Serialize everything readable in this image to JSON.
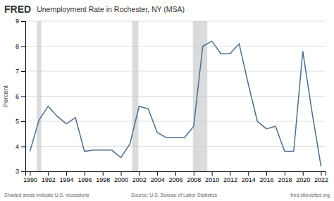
{
  "chart_data": {
    "type": "line",
    "title": "Unemployment Rate in Rochester, NY (MSA)",
    "y_label": "Percent",
    "annotations": [
      "FRED",
      "Shaded areas indicate U.S. recessions",
      "Source: U.S. Bureau of Labor Statistics",
      "fred.stlouisfed.org"
    ],
    "recession_periods": [
      [
        1990.75,
        1991.25
      ],
      [
        2001.25,
        2001.92
      ],
      [
        2007.92,
        2009.5
      ]
    ],
    "x": [
      1990,
      1991,
      1992,
      1993,
      1994,
      1995,
      1996,
      1997,
      1998,
      1999,
      2000,
      2001,
      2002,
      2003,
      2004,
      2005,
      2006,
      2007,
      2008,
      2009,
      2010,
      2011,
      2012,
      2013,
      2014,
      2015,
      2016,
      2017,
      2018,
      2019,
      2020,
      2021,
      2022
    ],
    "values": [
      3.8,
      5.05,
      5.6,
      5.2,
      4.9,
      5.15,
      3.8,
      3.85,
      3.85,
      3.85,
      3.55,
      4.1,
      5.6,
      5.5,
      4.55,
      4.35,
      4.35,
      4.35,
      4.8,
      8.0,
      8.2,
      7.7,
      7.7,
      8.1,
      6.5,
      5.0,
      4.7,
      4.8,
      3.8,
      3.8,
      7.8,
      5.4,
      3.2
    ],
    "color": "#4c6e8c",
    "xlim": [
      1989.5,
      2022.5
    ],
    "xticks": [
      1990,
      1992,
      1994,
      1996,
      1998,
      2000,
      2002,
      2004,
      2006,
      2008,
      2010,
      2012,
      2014,
      2016,
      2018,
      2020,
      2022
    ],
    "ylim": [
      3,
      9
    ],
    "yticks": [
      3,
      4,
      5,
      6,
      7,
      8,
      9
    ],
    "grid": true
  }
}
